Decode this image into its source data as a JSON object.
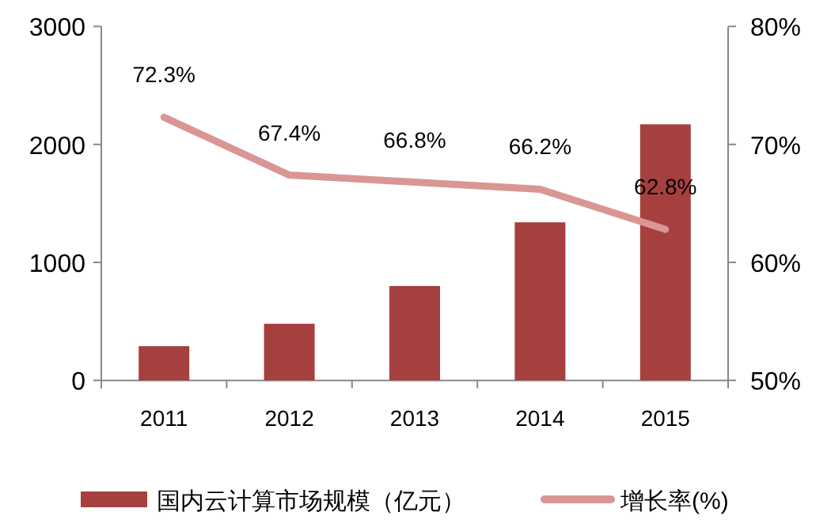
{
  "chart_data": {
    "type": "bar",
    "categories": [
      "2011",
      "2012",
      "2013",
      "2014",
      "2015"
    ],
    "series": [
      {
        "name": "国内云计算市场规模（亿元）",
        "color": "#a5403f",
        "values": [
          290,
          480,
          800,
          1340,
          2170
        ]
      },
      {
        "name": "增长率(%)",
        "type": "line",
        "axis": "y2",
        "color": "#d99694",
        "values": [
          72.3,
          67.4,
          66.8,
          66.2,
          62.8
        ],
        "value_labels": [
          "72.3%",
          "67.4%",
          "66.8%",
          "66.2%",
          "62.8%"
        ]
      }
    ],
    "ylim": [
      0,
      3000
    ],
    "yticks": [
      0,
      1000,
      2000,
      3000
    ],
    "y2lim": [
      50,
      80
    ],
    "y2ticks": [
      {
        "value": 50,
        "label": "50%"
      },
      {
        "value": 60,
        "label": "60%"
      },
      {
        "value": 70,
        "label": "70%"
      },
      {
        "value": 80,
        "label": "80%"
      }
    ],
    "legend": "bottom"
  }
}
